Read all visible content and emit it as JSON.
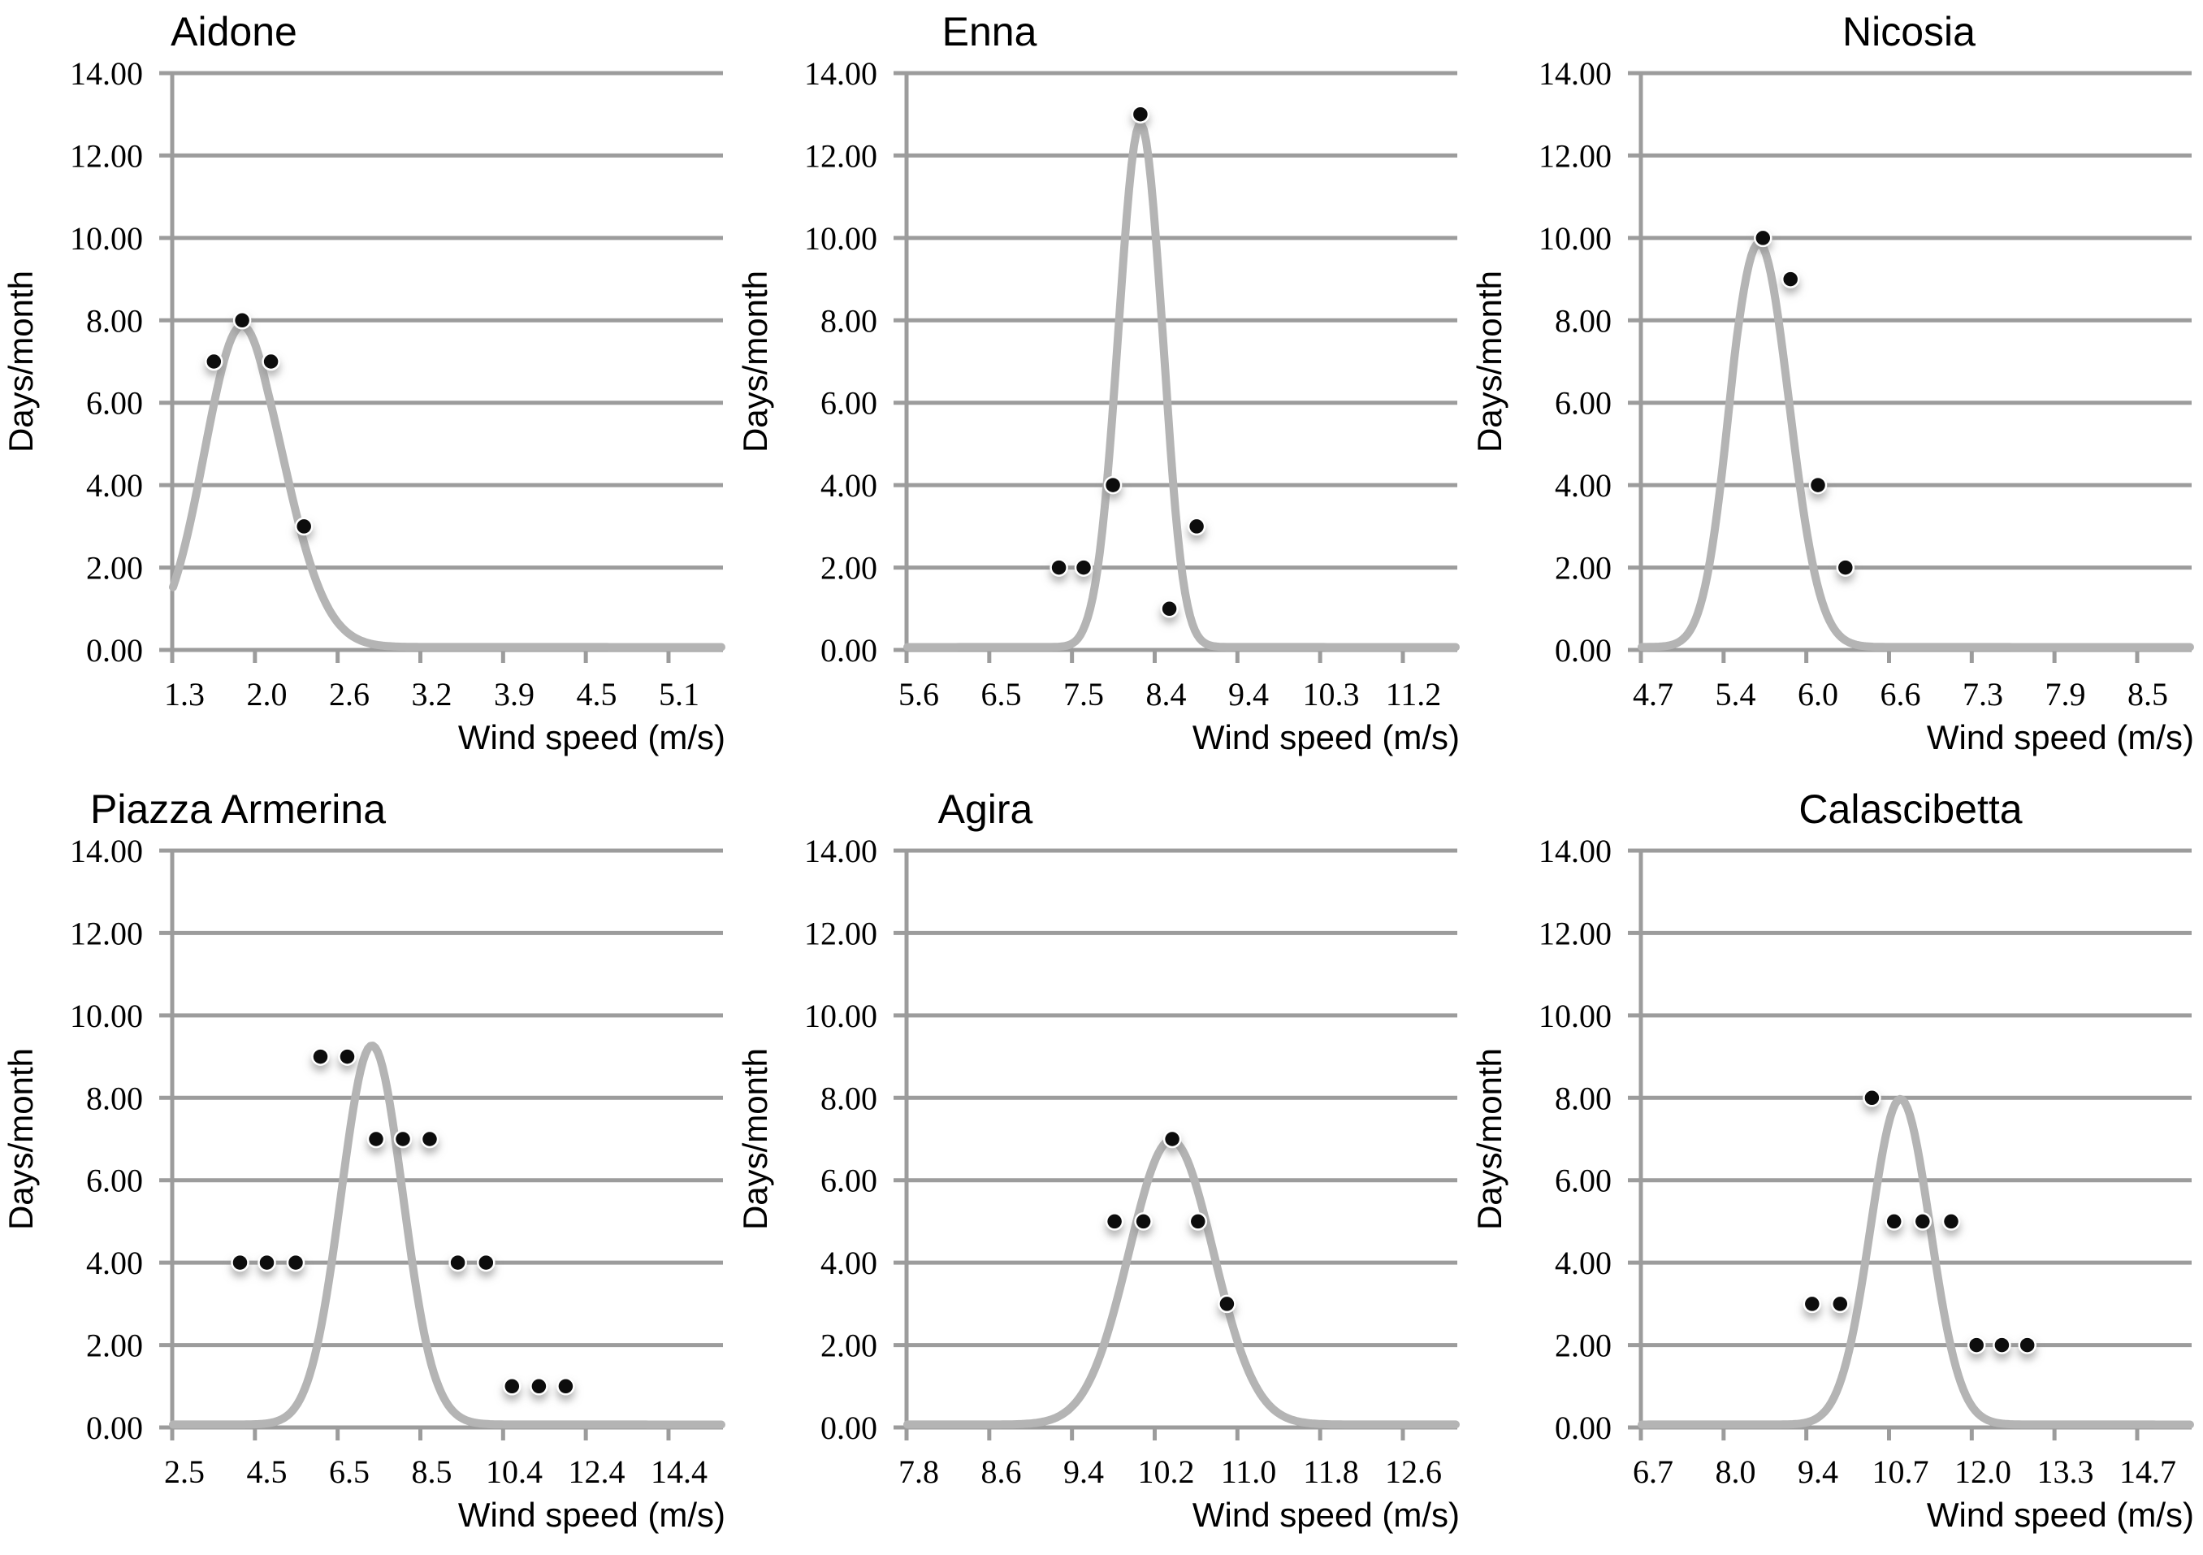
{
  "figure": {
    "xlabel": "Wind speed (m/s)",
    "ylabel": "Days/month",
    "y_tick_labels": [
      "0.00",
      "2.00",
      "4.00",
      "6.00",
      "8.00",
      "10.00",
      "12.00",
      "14.00"
    ],
    "colors": {
      "background": "#ffffff",
      "gridline": "#9c9c9c",
      "axis": "#9c9c9c",
      "curve": "#b4b4b4",
      "marker": "#0e0e0e",
      "text": "#000000"
    }
  },
  "chart_data": [
    {
      "type": "scatter",
      "title": "Aidone",
      "title_center_x": 288,
      "xlabel": "Wind speed (m/s)",
      "ylabel": "Days/month",
      "ylim": [
        0,
        14
      ],
      "grid": true,
      "legend_position": "none",
      "x_tick_labels": [
        1.3,
        2.0,
        2.6,
        3.2,
        3.9,
        4.5,
        5.1
      ],
      "points": [
        [
          1.55,
          7
        ],
        [
          1.79,
          8
        ],
        [
          2.03,
          7
        ],
        [
          2.27,
          3
        ]
      ],
      "fit_curve": {
        "shape": "gaussian",
        "peak_x": 1.79,
        "peak_y": 7.8,
        "sigma": 0.32,
        "baseline": 0.07
      }
    },
    {
      "type": "scatter",
      "title": "Enna",
      "title_center_x": 314,
      "xlabel": "Wind speed (m/s)",
      "ylabel": "Days/month",
      "ylim": [
        0,
        14
      ],
      "grid": true,
      "legend_position": "none",
      "x_tick_labels": [
        5.6,
        6.5,
        7.5,
        8.4,
        9.4,
        10.3,
        11.2
      ],
      "points": [
        [
          7.2,
          2
        ],
        [
          7.5,
          2
        ],
        [
          7.82,
          4
        ],
        [
          8.12,
          13
        ],
        [
          8.44,
          1
        ],
        [
          8.77,
          3
        ]
      ],
      "fit_curve": {
        "shape": "gaussian",
        "peak_x": 8.12,
        "peak_y": 12.7,
        "sigma": 0.24,
        "baseline": 0.07
      }
    },
    {
      "type": "scatter",
      "title": "Nicosia",
      "title_center_x": 542,
      "xlabel": "Wind speed (m/s)",
      "ylabel": "Days/month",
      "ylim": [
        0,
        14
      ],
      "grid": true,
      "legend_position": "none",
      "x_tick_labels": [
        4.7,
        5.4,
        6.0,
        6.6,
        7.3,
        7.9,
        8.5
      ],
      "points": [
        [
          5.6,
          10
        ],
        [
          5.8,
          9
        ],
        [
          6.0,
          4
        ],
        [
          6.2,
          2
        ]
      ],
      "fit_curve": {
        "shape": "gaussian",
        "peak_x": 5.57,
        "peak_y": 9.8,
        "sigma": 0.22,
        "baseline": 0.07
      }
    },
    {
      "type": "scatter",
      "title": "Piazza Armerina",
      "title_center_x": 293,
      "xlabel": "Wind speed (m/s)",
      "ylabel": "Days/month",
      "ylim": [
        0,
        14
      ],
      "grid": true,
      "legend_position": "none",
      "x_tick_labels": [
        2.5,
        4.5,
        6.5,
        8.5,
        10.4,
        12.4,
        14.4
      ],
      "points": [
        [
          3.85,
          4
        ],
        [
          4.5,
          4
        ],
        [
          5.2,
          4
        ],
        [
          5.8,
          9
        ],
        [
          6.45,
          9
        ],
        [
          7.15,
          7
        ],
        [
          7.8,
          7
        ],
        [
          8.45,
          7
        ],
        [
          9.1,
          4
        ],
        [
          9.75,
          4
        ],
        [
          10.35,
          1
        ],
        [
          11.0,
          1
        ],
        [
          11.65,
          1
        ]
      ],
      "fit_curve": {
        "shape": "gaussian",
        "peak_x": 7.05,
        "peak_y": 9.2,
        "sigma": 0.75,
        "baseline": 0.07
      }
    },
    {
      "type": "scatter",
      "title": "Agira",
      "title_center_x": 309,
      "xlabel": "Wind speed (m/s)",
      "ylabel": "Days/month",
      "ylim": [
        0,
        14
      ],
      "grid": true,
      "legend_position": "none",
      "x_tick_labels": [
        7.8,
        8.6,
        9.4,
        10.2,
        11.0,
        11.8,
        12.6
      ],
      "points": [
        [
          9.7,
          5
        ],
        [
          9.98,
          5
        ],
        [
          10.26,
          7
        ],
        [
          10.51,
          5
        ],
        [
          10.79,
          3
        ]
      ],
      "fit_curve": {
        "shape": "gaussian",
        "peak_x": 10.25,
        "peak_y": 6.9,
        "sigma": 0.41,
        "baseline": 0.07
      }
    },
    {
      "type": "scatter",
      "title": "Calascibetta",
      "title_center_x": 544,
      "xlabel": "Wind speed (m/s)",
      "ylabel": "Days/month",
      "ylim": [
        0,
        14
      ],
      "grid": true,
      "legend_position": "none",
      "x_tick_labels": [
        6.7,
        8.0,
        9.4,
        10.7,
        12.0,
        13.3,
        14.7
      ],
      "points": [
        [
          9.3,
          3
        ],
        [
          9.75,
          3
        ],
        [
          10.25,
          8
        ],
        [
          10.6,
          5
        ],
        [
          11.05,
          5
        ],
        [
          11.5,
          5
        ],
        [
          11.9,
          2
        ],
        [
          12.3,
          2
        ],
        [
          12.7,
          2
        ]
      ],
      "fit_curve": {
        "shape": "gaussian",
        "peak_x": 10.7,
        "peak_y": 7.9,
        "sigma": 0.47,
        "baseline": 0.07
      }
    }
  ]
}
